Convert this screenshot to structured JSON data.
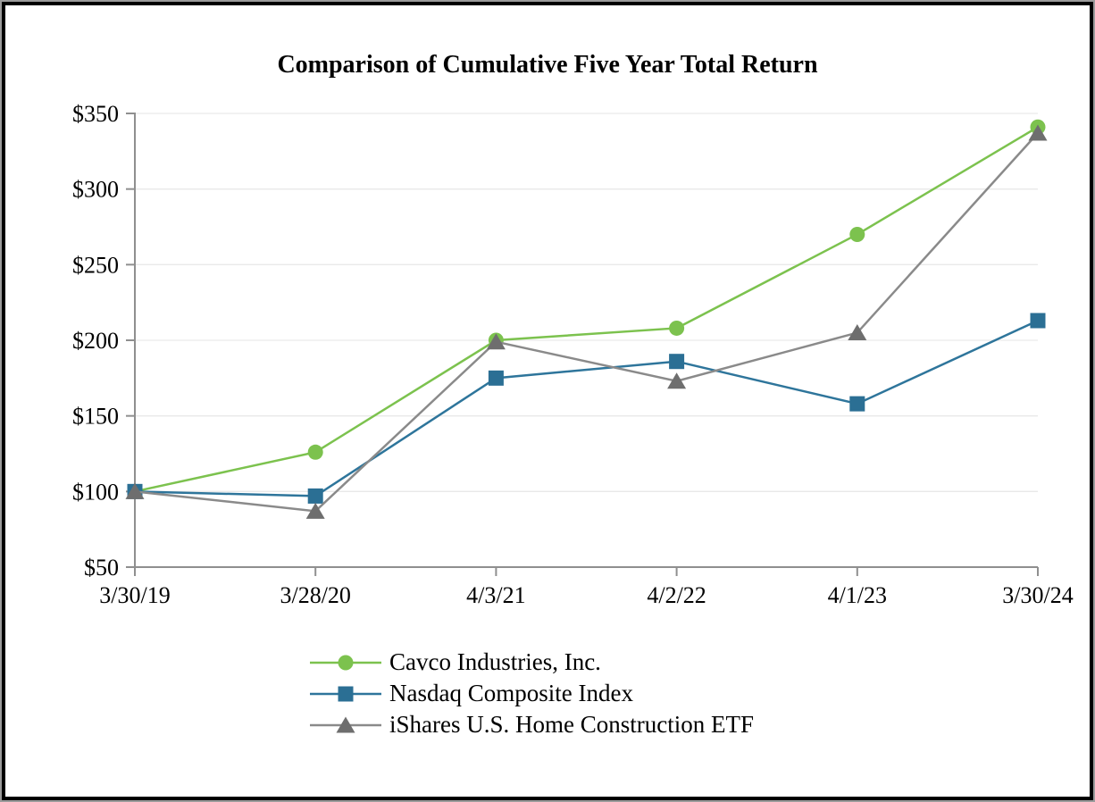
{
  "frame": {
    "outer_border_color": "#9b9b9b",
    "inner_border_color": "#000000",
    "background": "#ffffff"
  },
  "chart_data": {
    "type": "line",
    "title": "Comparison of Cumulative Five Year Total Return",
    "categories": [
      "3/30/19",
      "3/28/20",
      "4/3/21",
      "4/2/22",
      "4/1/23",
      "3/30/24"
    ],
    "series": [
      {
        "name": "Cavco Industries, Inc.",
        "marker": "circle",
        "color": "#7CC24E",
        "line_color": "#7CC24E",
        "values": [
          100,
          126,
          200,
          208,
          270,
          341
        ]
      },
      {
        "name": "Nasdaq Composite Index",
        "marker": "square",
        "color": "#2B6F94",
        "line_color": "#2E759B",
        "values": [
          100,
          97,
          175,
          186,
          158,
          213
        ]
      },
      {
        "name": "iShares U.S. Home Construction ETF",
        "marker": "triangle",
        "color": "#6E6E6E",
        "line_color": "#8A8A8A",
        "values": [
          100,
          87,
          199,
          173,
          205,
          337
        ]
      }
    ],
    "ylim": [
      50,
      350
    ],
    "ytick_step": 50,
    "ytick_labels": [
      "$50",
      "$100",
      "$150",
      "$200",
      "$250",
      "$300",
      "$350"
    ],
    "ytick_prefix": "$",
    "xlabel": "",
    "ylabel": "",
    "grid": true,
    "gridline_color": "#E9E9E9",
    "axis_color": "#8F8F8F",
    "text_color": "#000000",
    "legend_position": "bottom-left"
  }
}
